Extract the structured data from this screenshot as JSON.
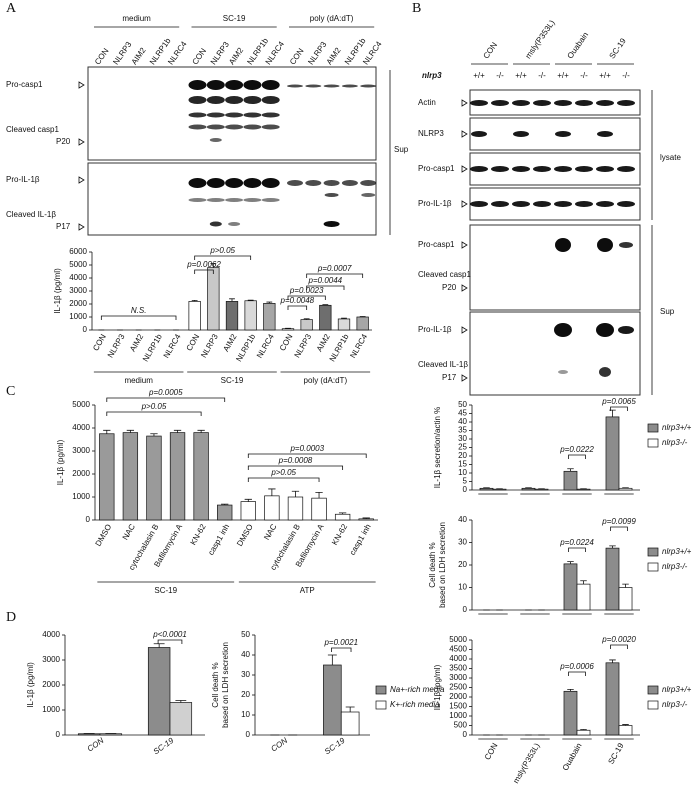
{
  "panel_labels": [
    "A",
    "B",
    "C",
    "D"
  ],
  "blot_a": {
    "groups": [
      "medium",
      "SC-19",
      "poly (dA:dT)"
    ],
    "lanes": [
      "CON",
      "NLRP3",
      "AIM2",
      "NLRP1b",
      "NLRC4",
      "CON",
      "NLRP3",
      "AIM2",
      "NLRP1b",
      "NLRC4",
      "CON",
      "NLRP3",
      "AIM2",
      "NLRP1b",
      "NLRC4"
    ],
    "rows": [
      [
        "Pro-casp1"
      ],
      [
        "Cleaved casp1",
        "P20"
      ],
      [
        "Pro-IL-1β"
      ],
      [
        "Cleaved IL-1β",
        "P17"
      ]
    ],
    "side_label": "Sup"
  },
  "blot_b": {
    "lanes": [
      "CON",
      "msly(P353L)",
      "Ouabain",
      "SC-19"
    ],
    "genotype_label": "nlrp3",
    "genotypes": [
      "+/+",
      "-/-",
      "+/+",
      "-/-",
      "+/+",
      "-/-",
      "+/+",
      "-/-"
    ],
    "rows": [
      [
        "Actin"
      ],
      [
        "NLRP3"
      ],
      [
        "Pro-casp1"
      ],
      [
        "Pro-IL-1β"
      ],
      [
        "Pro-casp1"
      ],
      [
        "Cleaved casp1",
        "P20"
      ],
      [
        "Pro-IL-1β"
      ],
      [
        "Cleaved IL-1β",
        "P17"
      ]
    ],
    "side_labels": [
      "lysate",
      "Sup"
    ]
  },
  "chart_data": [
    {
      "type": "bar",
      "ylabel": [
        "IL-1β (pg/ml)"
      ],
      "categories": [
        "CON",
        "NLRP3",
        "AIM2",
        "NLRP1b",
        "NLRC4",
        "CON",
        "NLRP3",
        "AIM2",
        "NLRP1b",
        "NLRC4",
        "CON",
        "NLRP3",
        "AIM2",
        "NLRP1b",
        "NLRC4"
      ],
      "group_labels": [
        "medium",
        "SC-19",
        "poly (dA:dT)"
      ],
      "values": [
        0,
        0,
        0,
        0,
        0,
        2200,
        4800,
        2200,
        2250,
        2050,
        100,
        800,
        1900,
        850,
        1000
      ],
      "errors": [
        0,
        0,
        0,
        0,
        0,
        80,
        300,
        200,
        50,
        100,
        30,
        60,
        50,
        60,
        40
      ],
      "colors": [
        "#ffffff",
        "#c8c8c8",
        "#6e6e6e",
        "#d9d9d9",
        "#a6a6a6",
        "#ffffff",
        "#c8c8c8",
        "#6e6e6e",
        "#d9d9d9",
        "#a6a6a6",
        "#ffffff",
        "#c8c8c8",
        "#6e6e6e",
        "#d9d9d9",
        "#a6a6a6"
      ],
      "ylim": [
        0,
        6000
      ],
      "yticks": [
        0,
        1000,
        2000,
        3000,
        4000,
        5000,
        6000
      ],
      "annotations": [
        "N.S.",
        "p>0.05",
        "p=0.0062",
        "p=0.0048",
        "p=0.0023",
        "p=0.0007",
        "p=0.0044"
      ]
    },
    {
      "type": "bar",
      "ylabel": [
        "IL-1β (pg/ml)"
      ],
      "categories": [
        "DMSO",
        "NAC",
        "cytochalasin B",
        "Bafilomycin A",
        "KN-62",
        "casp1 inh",
        "DMSO",
        "NAC",
        "cytochalasin B",
        "Bafilomycin A",
        "KN-62",
        "casp1 inh"
      ],
      "group_labels": [
        "SC-19",
        "ATP"
      ],
      "values": [
        3750,
        3800,
        3650,
        3800,
        3800,
        650,
        800,
        1050,
        1000,
        950,
        250,
        50
      ],
      "errors": [
        150,
        100,
        100,
        100,
        100,
        40,
        100,
        300,
        250,
        250,
        60,
        40
      ],
      "colors": [
        "#9a9a9a",
        "#9a9a9a",
        "#9a9a9a",
        "#9a9a9a",
        "#9a9a9a",
        "#9a9a9a",
        "#ffffff",
        "#ffffff",
        "#ffffff",
        "#ffffff",
        "#ffffff",
        "#ffffff"
      ],
      "ylim": [
        0,
        5000
      ],
      "yticks": [
        0,
        1000,
        2000,
        3000,
        4000,
        5000
      ],
      "annotations": [
        "p=0.0005",
        "p>0.05",
        "p=0.0003",
        "p=0.0008",
        "p>0.05"
      ]
    },
    {
      "type": "bar",
      "ylabel": [
        "IL-1β secretion/actin %"
      ],
      "series": [
        {
          "name": "nlrp3+/+",
          "color": "#8c8c8c",
          "values": [
            1,
            1,
            11,
            43
          ],
          "errors": [
            0.3,
            0.3,
            1.5,
            4
          ]
        },
        {
          "name": "nlrp3-/-",
          "color": "#ffffff",
          "values": [
            0.5,
            0.5,
            0.5,
            1
          ],
          "errors": [
            0.2,
            0.2,
            0.2,
            0.3
          ]
        }
      ],
      "ylim": [
        0,
        50
      ],
      "yticks": [
        0,
        5,
        10,
        15,
        20,
        25,
        30,
        35,
        40,
        45,
        50
      ],
      "annotations": [
        "p=0.0222",
        "p=0.0065"
      ]
    },
    {
      "type": "bar",
      "ylabel": [
        "Cell death %",
        "based on LDH secretion"
      ],
      "series": [
        {
          "name": "nlrp3+/+",
          "color": "#8c8c8c",
          "values": [
            0,
            0,
            20.5,
            27.5
          ],
          "errors": [
            0,
            0,
            1,
            1
          ]
        },
        {
          "name": "nlrp3-/-",
          "color": "#ffffff",
          "values": [
            0,
            0,
            11.5,
            10
          ],
          "errors": [
            0,
            0,
            1.5,
            1.5
          ]
        }
      ],
      "ylim": [
        0,
        40
      ],
      "yticks": [
        0,
        10,
        20,
        30,
        40
      ],
      "annotations": [
        "p=0.0224",
        "p=0.0099"
      ]
    },
    {
      "type": "bar",
      "ylabel": [
        "IL-1β (pg/ml)"
      ],
      "categories": [
        "CON",
        "msly(P353L)",
        "Ouabain",
        "SC-19"
      ],
      "series": [
        {
          "name": "nlrp3+/+",
          "color": "#8c8c8c",
          "values": [
            0,
            0,
            2300,
            3800
          ],
          "errors": [
            0,
            0,
            100,
            150
          ]
        },
        {
          "name": "nlrp3-/-",
          "color": "#ffffff",
          "values": [
            0,
            0,
            250,
            500
          ],
          "errors": [
            0,
            0,
            40,
            50
          ]
        }
      ],
      "ylim": [
        0,
        5000
      ],
      "yticks": [
        0,
        500,
        1000,
        1500,
        2000,
        2500,
        3000,
        3500,
        4000,
        4500,
        5000
      ],
      "annotations": [
        "p=0.0006",
        "p=0.0020"
      ]
    },
    {
      "type": "bar",
      "ylabel": [
        "IL-1β (pg/ml)"
      ],
      "categories": [
        "CON",
        "SC-19"
      ],
      "series": [
        {
          "color": "#8c8c8c",
          "values": [
            50,
            3500
          ],
          "errors": [
            10,
            150
          ]
        },
        {
          "color": "#d0d0d0",
          "values": [
            50,
            1300
          ],
          "errors": [
            10,
            80
          ]
        }
      ],
      "ylim": [
        0,
        4000
      ],
      "yticks": [
        0,
        1000,
        2000,
        3000,
        4000
      ],
      "annotations": [
        "p<0.0001"
      ]
    },
    {
      "type": "bar",
      "ylabel": [
        "Cell death %",
        "based on LDH secretion"
      ],
      "categories": [
        "CON",
        "SC-19"
      ],
      "series": [
        {
          "name": "Na+-rich media",
          "color": "#8c8c8c",
          "values": [
            0,
            35
          ],
          "errors": [
            0,
            5
          ]
        },
        {
          "name": "K+-rich media",
          "color": "#ffffff",
          "values": [
            0,
            11.5
          ],
          "errors": [
            0,
            2.5
          ]
        }
      ],
      "ylim": [
        0,
        50
      ],
      "yticks": [
        0,
        10,
        20,
        30,
        40,
        50
      ],
      "annotations": [
        "p=0.0021"
      ]
    }
  ]
}
